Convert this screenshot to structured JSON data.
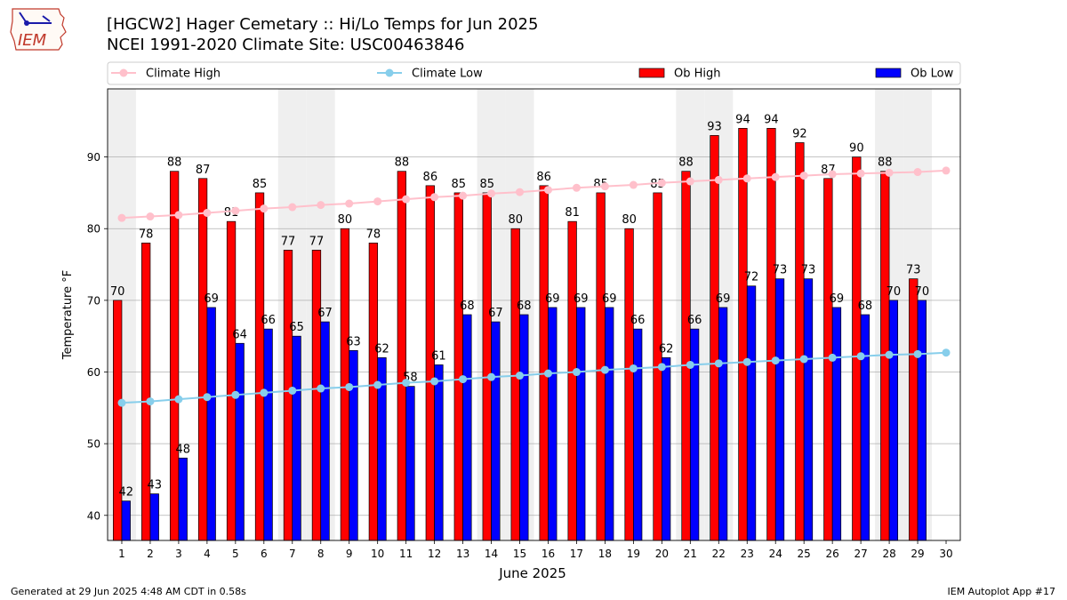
{
  "header": {
    "title": "[HGCW2] Hager Cemetary :: Hi/Lo Temps for Jun 2025",
    "subtitle": "NCEI 1991-2020 Climate Site: USC00463846"
  },
  "logo": {
    "text": "IEM",
    "icon": "iem-logo-icon"
  },
  "footer": {
    "generated": "Generated at 29 Jun 2025 4:48 AM CDT in 0.58s",
    "app": "IEM Autoplot App #17"
  },
  "colors": {
    "ob_high": "#ff0000",
    "ob_low": "#0000ff",
    "climate_high": "#ffc0cb",
    "climate_low": "#87ceeb",
    "weekend_shade": "#efefef",
    "grid": "#b0b0b0"
  },
  "chart_data": {
    "type": "bar",
    "xlabel": "June 2025",
    "ylabel": "Temperature °F",
    "ylim": [
      36.5,
      99.5
    ],
    "yticks": [
      40,
      50,
      60,
      70,
      80,
      90
    ],
    "grid": "horizontal",
    "legend_position": "top",
    "categories": [
      1,
      2,
      3,
      4,
      5,
      6,
      7,
      8,
      9,
      10,
      11,
      12,
      13,
      14,
      15,
      16,
      17,
      18,
      19,
      20,
      21,
      22,
      23,
      24,
      25,
      26,
      27,
      28,
      29,
      30
    ],
    "shaded_days": [
      1,
      7,
      8,
      14,
      15,
      21,
      22,
      28,
      29
    ],
    "legend": [
      "Climate High",
      "Climate Low",
      "Ob High",
      "Ob Low"
    ],
    "series": [
      {
        "name": "Ob High",
        "type": "bar",
        "values": [
          70,
          78,
          88,
          87,
          81,
          85,
          77,
          77,
          80,
          78,
          88,
          86,
          85,
          85,
          80,
          86,
          81,
          85,
          80,
          85,
          88,
          93,
          94,
          94,
          92,
          87,
          90,
          88,
          73,
          null
        ]
      },
      {
        "name": "Ob Low",
        "type": "bar",
        "values": [
          42,
          43,
          48,
          69,
          64,
          66,
          65,
          67,
          63,
          62,
          58,
          61,
          68,
          67,
          68,
          69,
          69,
          69,
          66,
          62,
          66,
          69,
          72,
          73,
          73,
          69,
          68,
          70,
          70,
          null
        ]
      },
      {
        "name": "Climate High",
        "type": "line",
        "values": [
          81.5,
          81.7,
          81.9,
          82.2,
          82.5,
          82.8,
          83.0,
          83.3,
          83.5,
          83.8,
          84.1,
          84.4,
          84.6,
          84.9,
          85.1,
          85.4,
          85.7,
          85.9,
          86.1,
          86.4,
          86.6,
          86.8,
          87.0,
          87.2,
          87.4,
          87.6,
          87.7,
          87.8,
          87.9,
          88.1
        ]
      },
      {
        "name": "Climate Low",
        "type": "line",
        "values": [
          55.7,
          55.9,
          56.2,
          56.5,
          56.8,
          57.1,
          57.4,
          57.7,
          57.9,
          58.2,
          58.5,
          58.7,
          59.0,
          59.3,
          59.5,
          59.8,
          60.0,
          60.3,
          60.5,
          60.7,
          61.0,
          61.2,
          61.4,
          61.6,
          61.8,
          62.0,
          62.2,
          62.4,
          62.5,
          62.7
        ]
      }
    ]
  }
}
